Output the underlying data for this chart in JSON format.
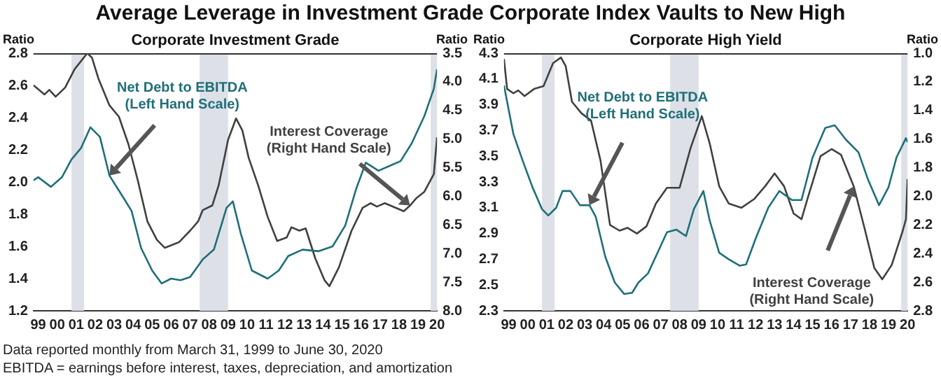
{
  "chart_data": [
    {
      "type": "line",
      "title": "Average Leverage in Investment Grade Corporate Index Vaults to New High",
      "subtitle": "Corporate Investment Grade",
      "ylabel": "Ratio",
      "y2label": "Ratio",
      "marker": "none",
      "legend": false,
      "grid": false,
      "xlim": [
        "1999-03",
        "2020-06"
      ],
      "xticks": [
        {
          "value": "1999-06",
          "label": "99"
        },
        {
          "value": "2000-06",
          "label": "00"
        },
        {
          "value": "2001-06",
          "label": "01"
        },
        {
          "value": "2002-06",
          "label": "02"
        },
        {
          "value": "2003-06",
          "label": "03"
        },
        {
          "value": "2004-06",
          "label": "04"
        },
        {
          "value": "2005-06",
          "label": "05"
        },
        {
          "value": "2006-06",
          "label": "06"
        },
        {
          "value": "2007-06",
          "label": "07"
        },
        {
          "value": "2008-06",
          "label": "08"
        },
        {
          "value": "2009-06",
          "label": "09"
        },
        {
          "value": "2010-06",
          "label": "10"
        },
        {
          "value": "2011-06",
          "label": "11"
        },
        {
          "value": "2012-06",
          "label": "12"
        },
        {
          "value": "2013-06",
          "label": "13"
        },
        {
          "value": "2014-06",
          "label": "14"
        },
        {
          "value": "2015-06",
          "label": "15"
        },
        {
          "value": "2016-06",
          "label": "16"
        },
        {
          "value": "2017-06",
          "label": "17"
        },
        {
          "value": "2018-06",
          "label": "18"
        },
        {
          "value": "2019-06",
          "label": "19"
        },
        {
          "value": "2020-06",
          "label": "20"
        }
      ],
      "ylim": [
        1.2,
        2.8
      ],
      "yticks": [
        1.2,
        1.4,
        1.6,
        1.8,
        {
          "value": 2,
          "label": "2.0"
        },
        2.2,
        2.4,
        2.6,
        2.8
      ],
      "y2lim": [
        8.0,
        3.5
      ],
      "y2ticks": [
        3.5,
        {
          "value": 4,
          "label": "4.0"
        },
        4.5,
        {
          "value": 5,
          "label": "5.0"
        },
        5.5,
        {
          "value": 6,
          "label": "6.0"
        },
        6.5,
        {
          "value": 7,
          "label": "7.0"
        },
        7.5,
        {
          "value": 8,
          "label": "8.0"
        }
      ],
      "bands": [
        {
          "axis": "x",
          "from": "2001-03",
          "to": "2001-11",
          "color": "#dde1e7"
        },
        {
          "axis": "x",
          "from": "2007-12",
          "to": "2009-06",
          "color": "#dde1e7"
        },
        {
          "axis": "x",
          "from": "2020-02",
          "to": "2020-06",
          "color": "#dde1e7"
        }
      ],
      "series": [
        {
          "name": "Net Debt to EBITDA\n(Left Hand Scale)",
          "color": "#1f6f78",
          "x": [
            "1999-03",
            "1999-06",
            "2000-02",
            "2000-09",
            "2001-03",
            "2001-09",
            "2002-03",
            "2002-09",
            "2003-03",
            "2003-12",
            "2004-05",
            "2004-11",
            "2005-06",
            "2005-12",
            "2006-06",
            "2006-12",
            "2007-06",
            "2008-02",
            "2008-09",
            "2009-05",
            "2009-09",
            "2010-02",
            "2010-09",
            "2011-07",
            "2012-02",
            "2012-08",
            "2013-05",
            "2014-03",
            "2014-12",
            "2015-08",
            "2016-03",
            "2016-09",
            "2017-05",
            "2017-12",
            "2018-07",
            "2019-02",
            "2019-10",
            "2020-04",
            "2020-06"
          ],
          "values": [
            2.01,
            2.03,
            1.97,
            2.03,
            2.14,
            2.21,
            2.34,
            2.28,
            2.04,
            1.9,
            1.82,
            1.59,
            1.45,
            1.37,
            1.4,
            1.39,
            1.41,
            1.52,
            1.58,
            1.84,
            1.88,
            1.68,
            1.45,
            1.4,
            1.45,
            1.54,
            1.58,
            1.57,
            1.6,
            1.73,
            1.96,
            2.12,
            2.07,
            2.1,
            2.13,
            2.24,
            2.41,
            2.58,
            2.7
          ]
        },
        {
          "name": "Interest Coverage\n(Right Hand Scale)",
          "color": "#404040",
          "axis": "y2",
          "x": [
            "1999-03",
            "1999-10",
            "2000-01",
            "2000-05",
            "2000-11",
            "2001-05",
            "2002-01",
            "2002-04",
            "2002-08",
            "2003-03",
            "2003-09",
            "2004-03",
            "2004-09",
            "2005-03",
            "2005-09",
            "2006-02",
            "2006-11",
            "2007-06",
            "2007-11",
            "2008-02",
            "2008-08",
            "2008-12",
            "2009-06",
            "2009-11",
            "2010-03",
            "2010-07",
            "2011-01",
            "2011-07",
            "2012-01",
            "2012-07",
            "2012-10",
            "2013-03",
            "2013-07",
            "2014-01",
            "2014-07",
            "2014-10",
            "2015-04",
            "2015-12",
            "2016-07",
            "2016-12",
            "2017-04",
            "2017-09",
            "2018-03",
            "2018-09",
            "2019-01",
            "2019-05",
            "2019-10",
            "2020-04",
            "2020-06"
          ],
          "values": [
            4.06,
            4.22,
            4.14,
            4.26,
            4.1,
            3.78,
            3.5,
            3.58,
            3.94,
            4.41,
            4.61,
            5.09,
            5.73,
            6.44,
            6.76,
            6.9,
            6.8,
            6.6,
            6.44,
            6.24,
            6.16,
            5.81,
            5.01,
            4.64,
            4.85,
            5.33,
            5.81,
            6.36,
            6.78,
            6.72,
            6.54,
            6.6,
            6.56,
            7.08,
            7.47,
            7.57,
            7.24,
            6.6,
            6.2,
            6.12,
            6.18,
            6.12,
            6.19,
            6.26,
            6.16,
            6.03,
            5.92,
            5.61,
            4.97
          ]
        }
      ],
      "annotations": [
        "Data reported monthly from March 31, 1999 to June 30, 2020",
        "EBITDA = earnings before interest, taxes, depreciation, and amortization"
      ]
    },
    {
      "type": "line",
      "subtitle": "Corporate High Yield",
      "ylabel": "Ratio",
      "y2label": "Ratio",
      "marker": "none",
      "legend": false,
      "grid": false,
      "xlim": [
        "1999-03",
        "2020-06"
      ],
      "xticks": [
        {
          "value": "1999-06",
          "label": "99"
        },
        {
          "value": "2000-06",
          "label": "00"
        },
        {
          "value": "2001-06",
          "label": "01"
        },
        {
          "value": "2002-06",
          "label": "02"
        },
        {
          "value": "2003-06",
          "label": "03"
        },
        {
          "value": "2004-06",
          "label": "04"
        },
        {
          "value": "2005-06",
          "label": "05"
        },
        {
          "value": "2006-06",
          "label": "06"
        },
        {
          "value": "2007-06",
          "label": "07"
        },
        {
          "value": "2008-06",
          "label": "08"
        },
        {
          "value": "2009-06",
          "label": "09"
        },
        {
          "value": "2010-06",
          "label": "10"
        },
        {
          "value": "2011-06",
          "label": "11"
        },
        {
          "value": "2012-06",
          "label": "12"
        },
        {
          "value": "2013-06",
          "label": "13"
        },
        {
          "value": "2014-06",
          "label": "14"
        },
        {
          "value": "2015-06",
          "label": "15"
        },
        {
          "value": "2016-06",
          "label": "16"
        },
        {
          "value": "2017-06",
          "label": "17"
        },
        {
          "value": "2018-06",
          "label": "18"
        },
        {
          "value": "2019-06",
          "label": "19"
        },
        {
          "value": "2020-06",
          "label": "20"
        }
      ],
      "ylim": [
        2.3,
        4.3
      ],
      "yticks": [
        2.3,
        2.5,
        2.7,
        2.9,
        3.1,
        3.3,
        3.5,
        3.7,
        3.9,
        4.1,
        4.3
      ],
      "y2lim": [
        2.8,
        1.0
      ],
      "y2ticks": [
        {
          "value": 1,
          "label": "1.0"
        },
        1.2,
        1.4,
        1.6,
        1.8,
        {
          "value": 2,
          "label": "2.0"
        },
        2.2,
        2.4,
        2.6,
        2.8
      ],
      "bands": [
        {
          "axis": "x",
          "from": "2001-03",
          "to": "2001-11",
          "color": "#dde1e7"
        },
        {
          "axis": "x",
          "from": "2007-12",
          "to": "2009-06",
          "color": "#dde1e7"
        },
        {
          "axis": "x",
          "from": "2020-02",
          "to": "2020-06",
          "color": "#dde1e7"
        }
      ],
      "series": [
        {
          "name": "Net Debt to EBITDA\n(Left Hand Scale)",
          "color": "#1f6f78",
          "x": [
            "1999-03",
            "1999-09",
            "2000-03",
            "2000-09",
            "2001-03",
            "2001-07",
            "2001-12",
            "2002-04",
            "2002-09",
            "2003-03",
            "2003-09",
            "2004-01",
            "2004-07",
            "2005-01",
            "2005-07",
            "2005-12",
            "2006-04",
            "2006-10",
            "2007-04",
            "2007-10",
            "2008-04",
            "2008-10",
            "2009-03",
            "2009-09",
            "2010-01",
            "2010-07",
            "2011-01",
            "2011-08",
            "2011-12",
            "2012-06",
            "2013-02",
            "2013-09",
            "2014-05",
            "2014-11",
            "2015-06",
            "2016-02",
            "2016-08",
            "2017-03",
            "2017-11",
            "2018-05",
            "2018-12",
            "2019-06",
            "2019-11",
            "2020-05",
            "2020-06"
          ],
          "values": [
            4.05,
            3.67,
            3.46,
            3.26,
            3.09,
            3.04,
            3.1,
            3.23,
            3.23,
            3.12,
            3.12,
            3.03,
            2.72,
            2.52,
            2.43,
            2.44,
            2.52,
            2.59,
            2.75,
            2.91,
            2.93,
            2.88,
            3.09,
            3.23,
            3.0,
            2.75,
            2.7,
            2.65,
            2.66,
            2.86,
            3.1,
            3.23,
            3.16,
            3.16,
            3.49,
            3.72,
            3.74,
            3.63,
            3.53,
            3.32,
            3.12,
            3.26,
            3.49,
            3.64,
            3.61
          ]
        },
        {
          "name": "Interest Coverage\n(Right Hand Scale)",
          "color": "#404040",
          "axis": "y2",
          "x": [
            "1999-03",
            "1999-05",
            "1999-09",
            "1999-12",
            "2000-04",
            "2000-10",
            "2001-04",
            "2001-10",
            "2002-03",
            "2002-06",
            "2002-10",
            "2003-04",
            "2003-10",
            "2004-04",
            "2004-10",
            "2005-04",
            "2005-09",
            "2006-03",
            "2006-09",
            "2007-03",
            "2007-10",
            "2008-06",
            "2009-01",
            "2009-08",
            "2010-01",
            "2010-07",
            "2011-01",
            "2011-09",
            "2012-05",
            "2012-12",
            "2013-06",
            "2013-12",
            "2014-06",
            "2014-11",
            "2015-03",
            "2015-11",
            "2016-06",
            "2016-12",
            "2017-08",
            "2018-03",
            "2018-09",
            "2019-02",
            "2019-08",
            "2020-03",
            "2020-05",
            "2020-06"
          ],
          "values": [
            1.04,
            1.25,
            1.28,
            1.26,
            1.3,
            1.25,
            1.23,
            1.07,
            1.03,
            1.09,
            1.34,
            1.42,
            1.47,
            1.75,
            2.2,
            2.24,
            2.22,
            2.26,
            2.21,
            2.05,
            1.94,
            1.94,
            1.66,
            1.44,
            1.63,
            1.93,
            2.05,
            2.08,
            2.02,
            1.93,
            1.84,
            1.93,
            2.12,
            2.16,
            2.01,
            1.72,
            1.67,
            1.71,
            1.93,
            2.23,
            2.5,
            2.58,
            2.48,
            2.24,
            2.16,
            1.88
          ]
        }
      ]
    }
  ]
}
